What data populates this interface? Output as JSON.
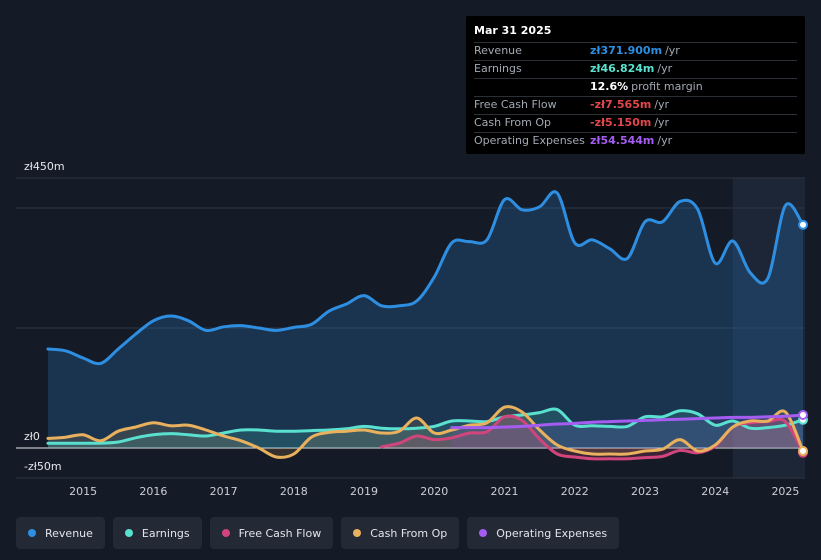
{
  "tooltip": {
    "date": "Mar 31 2025",
    "rows": [
      {
        "label": "Revenue",
        "value": "zł371.900m",
        "unit": "/yr",
        "color": "#2e8fe2"
      },
      {
        "label": "Earnings",
        "value": "zł46.824m",
        "unit": "/yr",
        "color": "#5ae0cf"
      },
      {
        "label": "",
        "value": "12.6%",
        "unit": "profit margin",
        "color": "#ffffff"
      },
      {
        "label": "Free Cash Flow",
        "value": "-zł7.565m",
        "unit": "/yr",
        "color": "#e0464c"
      },
      {
        "label": "Cash From Op",
        "value": "-zł5.150m",
        "unit": "/yr",
        "color": "#e0464c"
      },
      {
        "label": "Operating Expenses",
        "value": "zł54.544m",
        "unit": "/yr",
        "color": "#a55cf0"
      }
    ]
  },
  "legend": [
    {
      "label": "Revenue",
      "color": "#2e8fe2"
    },
    {
      "label": "Earnings",
      "color": "#5ae0cf"
    },
    {
      "label": "Free Cash Flow",
      "color": "#d2457c"
    },
    {
      "label": "Cash From Op",
      "color": "#e9b15e"
    },
    {
      "label": "Operating Expenses",
      "color": "#a55cf0"
    }
  ],
  "chart_data": {
    "type": "line",
    "title": "",
    "ylabels": [
      "zł450m",
      "zł0",
      "-zł50m"
    ],
    "ylim": [
      -50,
      450
    ],
    "xlim": [
      2014.5,
      2025.25
    ],
    "forecast_start": 2024.25,
    "xticks": [
      "2015",
      "2016",
      "2017",
      "2018",
      "2019",
      "2020",
      "2021",
      "2022",
      "2023",
      "2024",
      "2025"
    ],
    "series": [
      {
        "name": "Revenue",
        "color": "#2e8fe2",
        "fill": true,
        "x": [
          2014.5,
          2014.75,
          2015.0,
          2015.25,
          2015.5,
          2015.75,
          2016.0,
          2016.25,
          2016.5,
          2016.75,
          2017.0,
          2017.25,
          2017.5,
          2017.75,
          2018.0,
          2018.25,
          2018.5,
          2018.75,
          2019.0,
          2019.25,
          2019.5,
          2019.75,
          2020.0,
          2020.25,
          2020.5,
          2020.75,
          2021.0,
          2021.25,
          2021.5,
          2021.75,
          2022.0,
          2022.25,
          2022.5,
          2022.75,
          2023.0,
          2023.25,
          2023.5,
          2023.75,
          2024.0,
          2024.25,
          2024.5,
          2024.75,
          2025.0,
          2025.25
        ],
        "y": [
          165,
          162,
          150,
          141,
          165,
          190,
          212,
          220,
          212,
          196,
          202,
          204,
          200,
          196,
          201,
          206,
          228,
          240,
          254,
          237,
          237,
          245,
          285,
          342,
          344,
          347,
          414,
          397,
          402,
          425,
          342,
          347,
          332,
          316,
          377,
          377,
          411,
          398,
          308,
          345,
          292,
          283,
          404,
          372
        ]
      },
      {
        "name": "Earnings",
        "color": "#5ae0cf",
        "fill": true,
        "x": [
          2014.5,
          2014.75,
          2015.0,
          2015.25,
          2015.5,
          2015.75,
          2016.0,
          2016.25,
          2016.5,
          2016.75,
          2017.0,
          2017.25,
          2017.5,
          2017.75,
          2018.0,
          2018.25,
          2018.5,
          2018.75,
          2019.0,
          2019.25,
          2019.5,
          2019.75,
          2020.0,
          2020.25,
          2020.5,
          2020.75,
          2021.0,
          2021.25,
          2021.5,
          2021.75,
          2022.0,
          2022.25,
          2022.5,
          2022.75,
          2023.0,
          2023.25,
          2023.5,
          2023.75,
          2024.0,
          2024.25,
          2024.5,
          2024.75,
          2025.0,
          2025.25
        ],
        "y": [
          8,
          8,
          8,
          8,
          10,
          17,
          22,
          24,
          22,
          20,
          25,
          30,
          30,
          28,
          28,
          29,
          30,
          32,
          36,
          33,
          32,
          33,
          36,
          45,
          45,
          44,
          52,
          55,
          59,
          64,
          38,
          37,
          36,
          36,
          52,
          52,
          62,
          57,
          38,
          45,
          33,
          34,
          38,
          47
        ]
      },
      {
        "name": "Free Cash Flow",
        "color": "#d2457c",
        "fill": true,
        "x": [
          2019.25,
          2019.5,
          2019.75,
          2020.0,
          2020.25,
          2020.5,
          2020.75,
          2021.0,
          2021.25,
          2021.5,
          2021.75,
          2022.0,
          2022.25,
          2022.5,
          2022.75,
          2023.0,
          2023.25,
          2023.5,
          2023.75,
          2024.0,
          2024.25,
          2024.5,
          2024.75,
          2025.0,
          2025.25
        ],
        "y": [
          2,
          8,
          20,
          14,
          17,
          25,
          27,
          52,
          46,
          15,
          -10,
          -15,
          -18,
          -18,
          -18,
          -16,
          -14,
          -4,
          -8,
          3,
          35,
          42,
          44,
          44,
          -8
        ]
      },
      {
        "name": "Cash From Op",
        "color": "#e9b15e",
        "fill": true,
        "x": [
          2014.5,
          2014.75,
          2015.0,
          2015.25,
          2015.5,
          2015.75,
          2016.0,
          2016.25,
          2016.5,
          2016.75,
          2017.0,
          2017.25,
          2017.5,
          2017.75,
          2018.0,
          2018.25,
          2018.5,
          2018.75,
          2019.0,
          2019.25,
          2019.5,
          2019.75,
          2020.0,
          2020.25,
          2020.5,
          2020.75,
          2021.0,
          2021.25,
          2021.5,
          2021.75,
          2022.0,
          2022.25,
          2022.5,
          2022.75,
          2023.0,
          2023.25,
          2023.5,
          2023.75,
          2024.0,
          2024.25,
          2024.5,
          2024.75,
          2025.0,
          2025.25
        ],
        "y": [
          16,
          18,
          22,
          12,
          28,
          35,
          42,
          37,
          38,
          30,
          20,
          12,
          0,
          -15,
          -10,
          18,
          26,
          28,
          30,
          25,
          28,
          50,
          25,
          30,
          38,
          42,
          68,
          60,
          30,
          5,
          -5,
          -10,
          -10,
          -10,
          -5,
          -2,
          14,
          -5,
          5,
          35,
          45,
          45,
          60,
          -5
        ]
      },
      {
        "name": "Operating Expenses",
        "color": "#a55cf0",
        "fill": true,
        "x": [
          2020.25,
          2020.5,
          2020.75,
          2021.0,
          2021.25,
          2021.5,
          2021.75,
          2022.0,
          2022.25,
          2022.5,
          2022.75,
          2023.0,
          2023.25,
          2023.5,
          2023.75,
          2024.0,
          2024.25,
          2024.5,
          2024.75,
          2025.0,
          2025.25
        ],
        "y": [
          34,
          34,
          34,
          35,
          36,
          38,
          40,
          41,
          43,
          44,
          45,
          46,
          47,
          48,
          49,
          50,
          51,
          51,
          52,
          53,
          55
        ]
      }
    ]
  }
}
